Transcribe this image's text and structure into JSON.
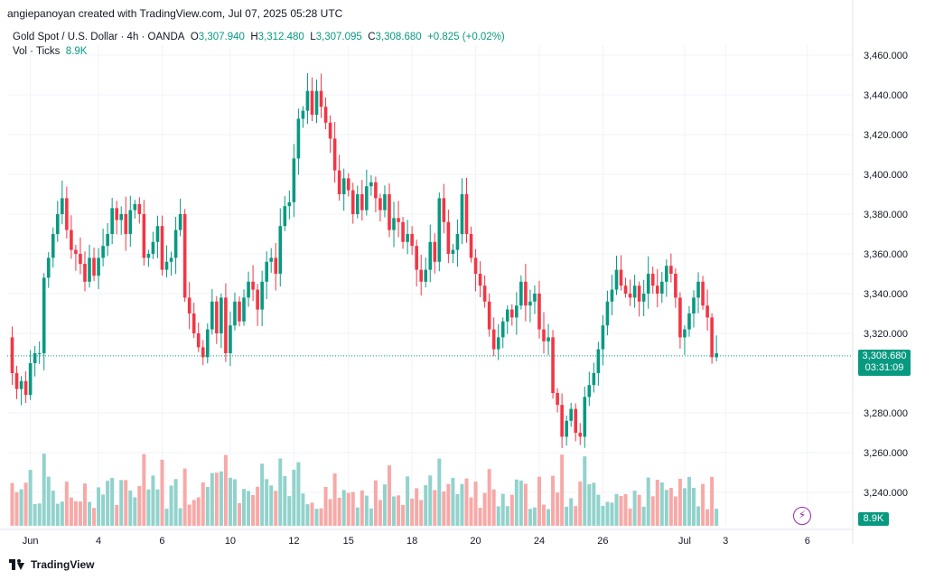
{
  "header": {
    "creator": "angiepanoyan created with TradingView.com, Jul 07, 2025 05:28 UTC"
  },
  "legend": {
    "symbol": "Gold Spot / U.S. Dollar · 4h · OANDA",
    "o_label": "O",
    "o_value": "3,307.940",
    "h_label": "H",
    "h_value": "3,312.480",
    "l_label": "L",
    "l_value": "3,307.095",
    "c_label": "C",
    "c_value": "3,308.680",
    "change": "+0.825 (+0.02%)",
    "vol_label": "Vol · Ticks",
    "vol_value": "8.9K"
  },
  "last_price": {
    "price": "3,308.680",
    "countdown": "03:31:09"
  },
  "volume_tag": "8.9K",
  "footer": {
    "brand": "TradingView"
  },
  "colors": {
    "up": "#089981",
    "down": "#f23645",
    "vol_up": "#92d2cc",
    "vol_down": "#f7a9a7",
    "grid": "#f0f3fa",
    "flash": "#9c27b0"
  },
  "icons": {
    "alert": "lightning-icon",
    "logo": "tradingview-logo-icon"
  },
  "chart_data": {
    "type": "candlestick",
    "y_ticks": [
      "3,460.000",
      "3,440.000",
      "3,420.000",
      "3,400.000",
      "3,380.000",
      "3,360.000",
      "3,340.000",
      "3,320.000",
      "3,280.000",
      "3,260.000",
      "3,240.000"
    ],
    "y_tick_values": [
      3460,
      3440,
      3420,
      3400,
      3380,
      3360,
      3340,
      3320,
      3280,
      3260,
      3240
    ],
    "ylim": [
      3228,
      3472
    ],
    "x_ticks": [
      {
        "label": "Jun",
        "bar": 4
      },
      {
        "label": "4",
        "bar": 19
      },
      {
        "label": "6",
        "bar": 33
      },
      {
        "label": "10",
        "bar": 48
      },
      {
        "label": "12",
        "bar": 62
      },
      {
        "label": "15",
        "bar": 74
      },
      {
        "label": "18",
        "bar": 88
      },
      {
        "label": "20",
        "bar": 102
      },
      {
        "label": "24",
        "bar": 116
      },
      {
        "label": "26",
        "bar": 130
      },
      {
        "label": "Jul",
        "bar": 148
      },
      {
        "label": "3",
        "bar": 157
      },
      {
        "label": "6",
        "bar": 175
      }
    ],
    "last_close": 3308.68,
    "closes": [
      3300,
      3292,
      3296,
      3289,
      3305,
      3310,
      3310,
      3348,
      3358,
      3370,
      3380,
      3388,
      3372,
      3362,
      3360,
      3355,
      3346,
      3358,
      3349,
      3358,
      3364,
      3370,
      3383,
      3377,
      3380,
      3370,
      3382,
      3385,
      3380,
      3358,
      3360,
      3366,
      3374,
      3352,
      3356,
      3358,
      3372,
      3380,
      3338,
      3330,
      3320,
      3313,
      3308,
      3322,
      3336,
      3320,
      3338,
      3310,
      3324,
      3336,
      3326,
      3338,
      3346,
      3342,
      3332,
      3346,
      3356,
      3358,
      3350,
      3374,
      3384,
      3386,
      3408,
      3428,
      3432,
      3442,
      3430,
      3442,
      3434,
      3426,
      3418,
      3402,
      3390,
      3398,
      3392,
      3380,
      3390,
      3382,
      3394,
      3396,
      3388,
      3382,
      3390,
      3372,
      3378,
      3376,
      3366,
      3370,
      3364,
      3352,
      3346,
      3352,
      3366,
      3356,
      3388,
      3376,
      3360,
      3362,
      3370,
      3390,
      3370,
      3358,
      3350,
      3344,
      3336,
      3322,
      3312,
      3318,
      3326,
      3332,
      3328,
      3334,
      3346,
      3334,
      3336,
      3340,
      3322,
      3316,
      3318,
      3290,
      3284,
      3268,
      3276,
      3282,
      3270,
      3268,
      3288,
      3294,
      3300,
      3312,
      3324,
      3336,
      3342,
      3352,
      3344,
      3340,
      3338,
      3344,
      3336,
      3340,
      3350,
      3344,
      3340,
      3346,
      3354,
      3350,
      3338,
      3318,
      3322,
      3330,
      3338,
      3346,
      3334,
      3328,
      3308,
      3310
    ],
    "volume_note": "Vol · Ticks histogram, last value 8.9K"
  }
}
